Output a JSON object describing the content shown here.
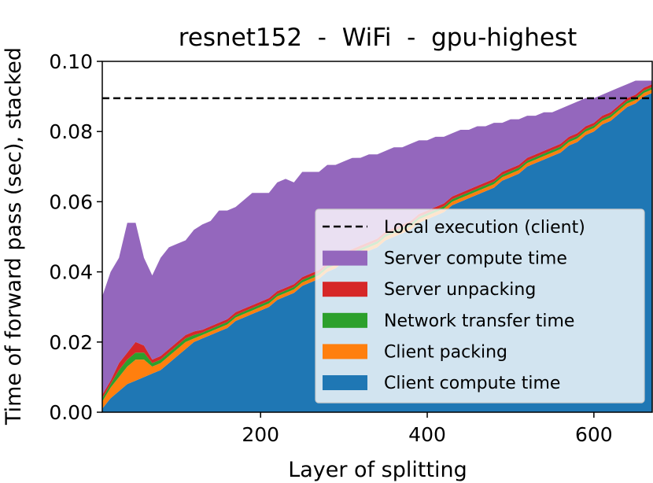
{
  "chart_data": {
    "type": "area",
    "title": "resnet152  -  WiFi  -  gpu-highest",
    "xlabel": "Layer of splitting",
    "ylabel": "Time of forward pass (sec), stacked",
    "xlim": [
      10,
      670
    ],
    "ylim": [
      0,
      0.1
    ],
    "xticks": [
      200,
      400,
      600
    ],
    "xtick_labels": [
      "200",
      "400",
      "600"
    ],
    "yticks": [
      0,
      0.02,
      0.04,
      0.06,
      0.08,
      0.1
    ],
    "ytick_labels": [
      "0.00",
      "0.02",
      "0.04",
      "0.06",
      "0.08",
      "0.10"
    ],
    "grid": false,
    "legend_position": "lower-right",
    "x": [
      10,
      20,
      30,
      40,
      50,
      60,
      70,
      80,
      90,
      100,
      110,
      120,
      130,
      140,
      150,
      160,
      170,
      180,
      190,
      200,
      210,
      220,
      230,
      240,
      250,
      260,
      270,
      280,
      290,
      300,
      310,
      320,
      330,
      340,
      350,
      360,
      370,
      380,
      390,
      400,
      410,
      420,
      430,
      440,
      450,
      460,
      470,
      480,
      490,
      500,
      510,
      520,
      530,
      540,
      550,
      560,
      570,
      580,
      590,
      600,
      610,
      620,
      630,
      640,
      650,
      660,
      670
    ],
    "reference_line": {
      "name": "Local execution (client)",
      "y": 0.0895,
      "style": "dashed",
      "color": "#000000"
    },
    "series": [
      {
        "name": "Client compute time",
        "color": "#1f77b4",
        "values": [
          0.001,
          0.004,
          0.006,
          0.008,
          0.009,
          0.01,
          0.011,
          0.012,
          0.014,
          0.016,
          0.018,
          0.02,
          0.021,
          0.022,
          0.023,
          0.024,
          0.026,
          0.027,
          0.028,
          0.029,
          0.03,
          0.032,
          0.033,
          0.034,
          0.036,
          0.037,
          0.038,
          0.04,
          0.041,
          0.043,
          0.044,
          0.045,
          0.046,
          0.047,
          0.049,
          0.05,
          0.051,
          0.052,
          0.054,
          0.055,
          0.056,
          0.057,
          0.059,
          0.06,
          0.061,
          0.062,
          0.063,
          0.064,
          0.066,
          0.067,
          0.068,
          0.07,
          0.071,
          0.072,
          0.073,
          0.074,
          0.076,
          0.077,
          0.079,
          0.08,
          0.082,
          0.083,
          0.085,
          0.087,
          0.088,
          0.09,
          0.091
        ]
      },
      {
        "name": "Client packing",
        "color": "#ff7f0e",
        "values": [
          0.002,
          0.003,
          0.004,
          0.005,
          0.006,
          0.005,
          0.002,
          0.002,
          0.002,
          0.002,
          0.002,
          0.001,
          0.001,
          0.001,
          0.001,
          0.001,
          0.001,
          0.001,
          0.001,
          0.001,
          0.001,
          0.001,
          0.001,
          0.001,
          0.001,
          0.001,
          0.001,
          0.001,
          0.001,
          0.001,
          0.001,
          0.001,
          0.001,
          0.001,
          0.001,
          0.001,
          0.001,
          0.001,
          0.001,
          0.001,
          0.001,
          0.001,
          0.001,
          0.001,
          0.001,
          0.001,
          0.001,
          0.001,
          0.001,
          0.001,
          0.001,
          0.001,
          0.001,
          0.001,
          0.001,
          0.001,
          0.001,
          0.001,
          0.001,
          0.001,
          0.001,
          0.001,
          0.001,
          0.001,
          0.001,
          0.001,
          0.001
        ]
      },
      {
        "name": "Network transfer time",
        "color": "#2ca02c",
        "values": [
          0.001,
          0.001,
          0.002,
          0.002,
          0.002,
          0.002,
          0.001,
          0.001,
          0.001,
          0.001,
          0.001,
          0.001,
          0.0007,
          0.0007,
          0.0007,
          0.0007,
          0.0007,
          0.0007,
          0.0007,
          0.0007,
          0.0007,
          0.0007,
          0.0007,
          0.0007,
          0.0007,
          0.0007,
          0.0007,
          0.0007,
          0.0007,
          0.0007,
          0.0007,
          0.0007,
          0.0007,
          0.0007,
          0.0007,
          0.0007,
          0.0007,
          0.0007,
          0.0007,
          0.0007,
          0.0007,
          0.0007,
          0.0007,
          0.0007,
          0.0007,
          0.0007,
          0.0007,
          0.0007,
          0.0007,
          0.0007,
          0.0007,
          0.0007,
          0.0007,
          0.0007,
          0.0007,
          0.0007,
          0.0007,
          0.0007,
          0.0007,
          0.0007,
          0.0007,
          0.0007,
          0.0007,
          0.0007,
          0.0007,
          0.0007,
          0.0007
        ]
      },
      {
        "name": "Server unpacking",
        "color": "#d62728",
        "values": [
          0.001,
          0.001,
          0.002,
          0.002,
          0.003,
          0.002,
          0.001,
          0.001,
          0.001,
          0.001,
          0.001,
          0.001,
          0.0008,
          0.0008,
          0.0008,
          0.0008,
          0.0008,
          0.0008,
          0.0008,
          0.0008,
          0.0008,
          0.0008,
          0.0008,
          0.0008,
          0.0008,
          0.0008,
          0.0008,
          0.0008,
          0.0008,
          0.0008,
          0.0008,
          0.0008,
          0.0008,
          0.0008,
          0.0008,
          0.0008,
          0.0008,
          0.0008,
          0.0008,
          0.0008,
          0.0008,
          0.0008,
          0.0008,
          0.0008,
          0.0008,
          0.0008,
          0.0008,
          0.0008,
          0.0008,
          0.0008,
          0.0008,
          0.0008,
          0.0008,
          0.0008,
          0.0008,
          0.0008,
          0.0008,
          0.0008,
          0.0008,
          0.0008,
          0.0008,
          0.0008,
          0.0008,
          0.0008,
          0.0008,
          0.0008,
          0.0008
        ]
      },
      {
        "name": "Server compute time",
        "color": "#9467bd",
        "values": [
          0.028,
          0.031,
          0.03,
          0.037,
          0.034,
          0.025,
          0.024,
          0.028,
          0.029,
          0.028,
          0.027,
          0.029,
          0.03,
          0.03,
          0.032,
          0.031,
          0.03,
          0.031,
          0.032,
          0.031,
          0.03,
          0.031,
          0.031,
          0.029,
          0.03,
          0.029,
          0.028,
          0.028,
          0.027,
          0.026,
          0.026,
          0.025,
          0.025,
          0.024,
          0.023,
          0.023,
          0.022,
          0.022,
          0.021,
          0.02,
          0.02,
          0.019,
          0.018,
          0.018,
          0.017,
          0.017,
          0.016,
          0.016,
          0.014,
          0.014,
          0.013,
          0.012,
          0.011,
          0.011,
          0.01,
          0.01,
          0.009,
          0.009,
          0.008,
          0.007,
          0.006,
          0.006,
          0.005,
          0.004,
          0.004,
          0.002,
          0.001
        ]
      }
    ]
  }
}
